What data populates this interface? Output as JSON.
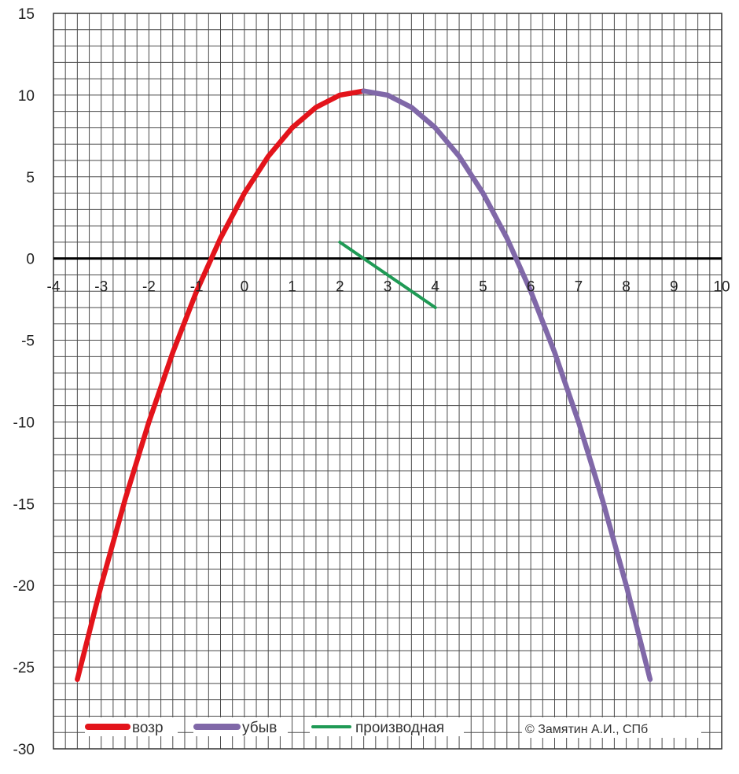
{
  "chart_data": {
    "type": "line",
    "xlim": [
      -4,
      10
    ],
    "ylim": [
      -30,
      15
    ],
    "x_ticks": [
      -4,
      -3,
      -2,
      -1,
      0,
      1,
      2,
      3,
      4,
      5,
      6,
      7,
      8,
      9,
      10
    ],
    "y_ticks": [
      15,
      10,
      5,
      0,
      -5,
      -10,
      -15,
      -20,
      -25,
      -30
    ],
    "grid": true,
    "legend_position": "bottom",
    "series": [
      {
        "name": "возр",
        "color": "#e3141b",
        "x": [
          -3.5,
          -3,
          -2.5,
          -2,
          -1.5,
          -1,
          -0.5,
          0,
          0.5,
          1,
          1.5,
          2,
          2.5
        ],
        "y": [
          -25.75,
          -20,
          -14.75,
          -10,
          -5.75,
          -2,
          1.25,
          4,
          6.25,
          8,
          9.25,
          10,
          10.25
        ]
      },
      {
        "name": "убыв",
        "color": "#8068a8",
        "x": [
          2.5,
          3,
          3.5,
          4,
          4.5,
          5,
          5.5,
          6,
          6.5,
          7,
          7.5,
          8,
          8.5
        ],
        "y": [
          10.25,
          10,
          9.25,
          8,
          6.25,
          4,
          1.25,
          -2,
          -5.75,
          -10,
          -14.75,
          -20,
          -25.75
        ]
      },
      {
        "name": "производная",
        "color": "#1f9a55",
        "x": [
          2,
          4
        ],
        "y": [
          1,
          -3
        ]
      }
    ],
    "annotation": "© Замятин А.И., СПб"
  }
}
